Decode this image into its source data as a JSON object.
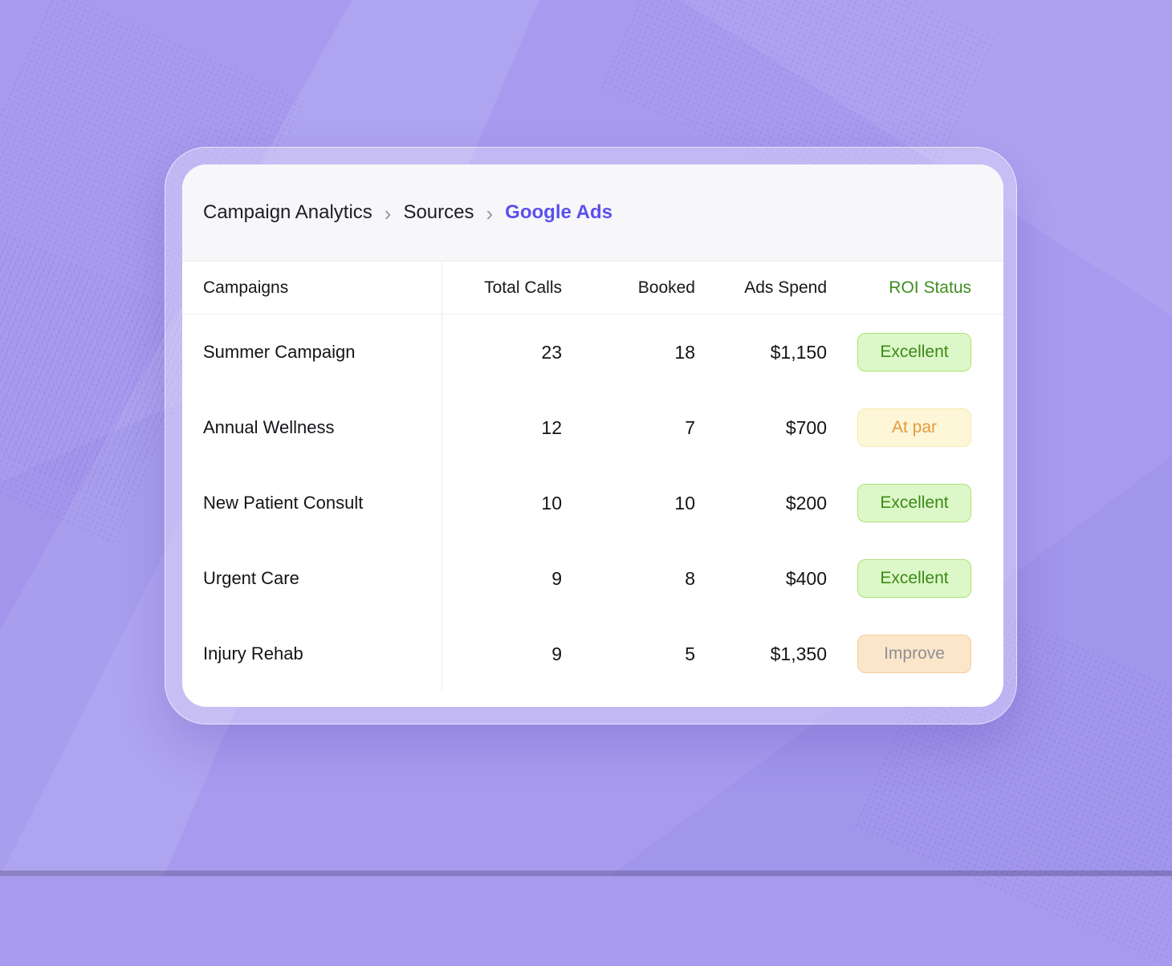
{
  "breadcrumb": {
    "separator": "›",
    "items": [
      {
        "label": "Campaign Analytics"
      },
      {
        "label": "Sources"
      },
      {
        "label": "Google Ads"
      }
    ]
  },
  "table": {
    "columns": {
      "campaigns": "Campaigns",
      "total_calls": "Total Calls",
      "booked": "Booked",
      "ads_spend": "Ads Spend",
      "roi_status": "ROI Status"
    },
    "rows": [
      {
        "campaign": "Summer Campaign",
        "total_calls": "23",
        "booked": "18",
        "ads_spend": "$1,150",
        "roi_status": "Excellent"
      },
      {
        "campaign": "Annual Wellness",
        "total_calls": "12",
        "booked": "7",
        "ads_spend": "$700",
        "roi_status": "At par"
      },
      {
        "campaign": "New Patient Consult",
        "total_calls": "10",
        "booked": "10",
        "ads_spend": "$200",
        "roi_status": "Excellent"
      },
      {
        "campaign": "Urgent Care",
        "total_calls": "9",
        "booked": "8",
        "ads_spend": "$400",
        "roi_status": "Excellent"
      },
      {
        "campaign": "Injury Rehab",
        "total_calls": "9",
        "booked": "5",
        "ads_spend": "$1,350",
        "roi_status": "Improve"
      }
    ]
  },
  "colors": {
    "background": "#a89bef",
    "card_bg": "#ffffff",
    "breadcrumb_bg": "#f7f7f9",
    "link_active": "#5a50ee",
    "roi_header_text": "#3e8e22",
    "badge_excellent_bg": "#ddf8c8",
    "badge_excellent_border": "#a8e272",
    "badge_excellent_text": "#3a8a16",
    "badge_atpar_bg": "#fdf6d7",
    "badge_atpar_border": "#f4ecae",
    "badge_atpar_text": "#e6993d",
    "badge_improve_bg": "#fce6c9",
    "badge_improve_border": "#f3cf9d",
    "badge_improve_text": "#8f8f94"
  }
}
